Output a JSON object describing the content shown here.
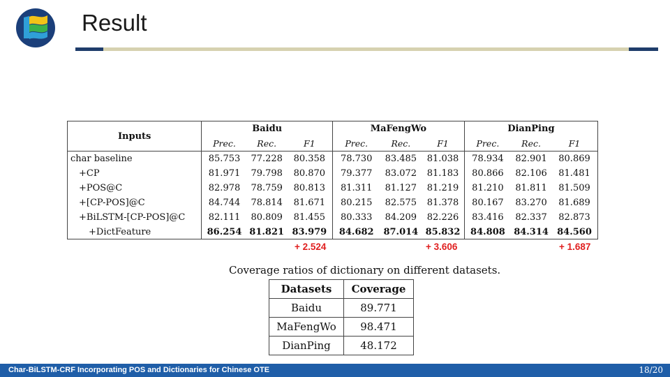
{
  "slide": {
    "title": "Result"
  },
  "results_table": {
    "inputs_header": "Inputs",
    "groups": [
      "Baidu",
      "MaFengWo",
      "DianPing"
    ],
    "sub_headers": [
      "Prec.",
      "Rec.",
      "F1",
      "Prec.",
      "Rec.",
      "F1",
      "Prec.",
      "Rec.",
      "F1"
    ],
    "rows": [
      {
        "label": "char baseline",
        "values": [
          "85.753",
          "77.228",
          "80.358",
          "78.730",
          "83.485",
          "81.038",
          "78.934",
          "82.901",
          "80.869"
        ]
      },
      {
        "label": "+CP",
        "values": [
          "81.971",
          "79.798",
          "80.870",
          "79.377",
          "83.072",
          "81.183",
          "80.866",
          "82.106",
          "81.481"
        ]
      },
      {
        "label": "+POS@C",
        "values": [
          "82.978",
          "78.759",
          "80.813",
          "81.311",
          "81.127",
          "81.219",
          "81.210",
          "81.811",
          "81.509"
        ]
      },
      {
        "label": "+[CP-POS]@C",
        "values": [
          "84.744",
          "78.814",
          "81.671",
          "80.215",
          "82.575",
          "81.378",
          "80.167",
          "83.270",
          "81.689"
        ]
      },
      {
        "label": "+BiLSTM-[CP-POS]@C",
        "values": [
          "82.111",
          "80.809",
          "81.455",
          "80.333",
          "84.209",
          "82.226",
          "83.416",
          "82.337",
          "82.873"
        ]
      },
      {
        "label": "+DictFeature",
        "values": [
          "86.254",
          "81.821",
          "83.979",
          "84.682",
          "87.014",
          "85.832",
          "84.808",
          "84.314",
          "84.560"
        ]
      }
    ],
    "gains": [
      "+ 2.524",
      "+ 3.606",
      "+ 1.687"
    ],
    "gain_color": "#e02020"
  },
  "coverage_table": {
    "caption": "Coverage ratios of dictionary on different datasets.",
    "headers": [
      "Datasets",
      "Coverage"
    ],
    "rows": [
      {
        "dataset": "Baidu",
        "coverage": "89.771"
      },
      {
        "dataset": "MaFengWo",
        "coverage": "98.471"
      },
      {
        "dataset": "DianPing",
        "coverage": "48.172"
      }
    ]
  },
  "footer": {
    "title": "Char-BiLSTM-CRF Incorporating POS and Dictionaries for Chinese OTE",
    "page": "18/20"
  },
  "colors": {
    "accent_navy": "#1f3d6b",
    "rule_tan": "#d6d1b0",
    "footer_blue": "#1f5ea8"
  }
}
